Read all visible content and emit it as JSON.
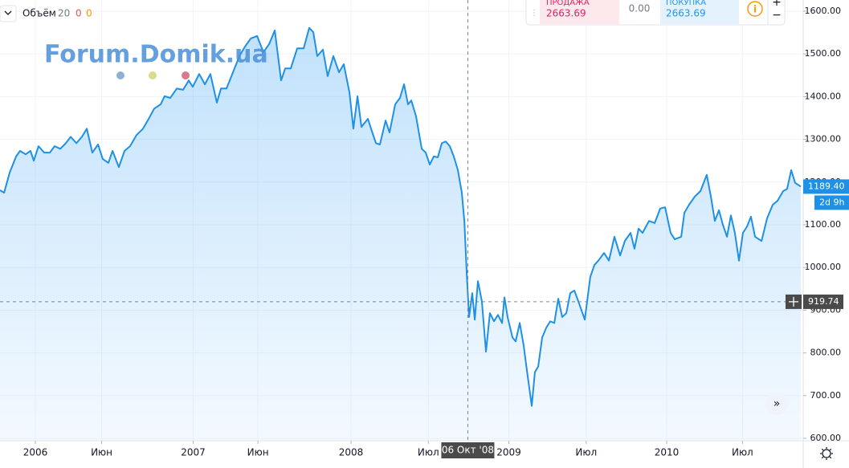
{
  "legend": {
    "name": "Объём",
    "period": "20",
    "volume_values": [
      0,
      0
    ]
  },
  "order_panel": {
    "sell_label": "ПРОДАЖА",
    "sell_price": "2663.69",
    "spread": "0.00",
    "buy_label": "ПОКУПКА",
    "buy_price": "2663.69"
  },
  "watermark": "Forum.Domik.ua",
  "chart_data": {
    "type": "line",
    "color": "#1e90e6",
    "grid": true,
    "x": [
      2005.776,
      2005.802,
      2005.837,
      2005.878,
      2005.903,
      2005.939,
      2005.969,
      2005.99,
      2006.02,
      2006.056,
      2006.092,
      2006.122,
      2006.158,
      2006.193,
      2006.224,
      2006.26,
      2006.295,
      2006.326,
      2006.361,
      2006.397,
      2006.427,
      2006.463,
      2006.489,
      2006.529,
      2006.565,
      2006.6,
      2006.641,
      2006.682,
      2006.718,
      2006.753,
      2006.794,
      2006.819,
      2006.855,
      2006.896,
      2006.936,
      2006.972,
      2006.997,
      2007.038,
      2007.074,
      2007.109,
      2007.15,
      2007.176,
      2007.211,
      2007.252,
      2007.293,
      2007.328,
      2007.364,
      2007.405,
      2007.445,
      2007.481,
      2007.517,
      2007.557,
      2007.583,
      2007.618,
      2007.659,
      2007.7,
      2007.735,
      2007.761,
      2007.786,
      2007.822,
      2007.852,
      2007.888,
      2007.924,
      2007.954,
      2007.99,
      2008.015,
      2008.041,
      2008.066,
      2008.107,
      2008.127,
      2008.158,
      2008.183,
      2008.219,
      2008.244,
      2008.28,
      2008.31,
      2008.336,
      2008.361,
      2008.382,
      2008.412,
      2008.448,
      2008.473,
      2008.499,
      2008.524,
      2008.55,
      2008.575,
      2008.6,
      2008.626,
      2008.651,
      2008.677,
      2008.702,
      2008.718,
      2008.733,
      2008.748,
      2008.768,
      2008.784,
      2008.804,
      2008.829,
      2008.855,
      2008.88,
      2008.906,
      2008.931,
      2008.957,
      2008.972,
      2008.992,
      2009.023,
      2009.043,
      2009.069,
      2009.094,
      2009.114,
      2009.145,
      2009.165,
      2009.186,
      2009.211,
      2009.237,
      2009.262,
      2009.288,
      2009.313,
      2009.338,
      2009.364,
      2009.389,
      2009.415,
      2009.44,
      2009.481,
      2009.516,
      2009.542,
      2009.567,
      2009.603,
      2009.634,
      2009.669,
      2009.705,
      2009.735,
      2009.771,
      2009.796,
      2009.822,
      2009.847,
      2009.888,
      2009.924,
      2009.959,
      2009.99,
      2010.025,
      2010.051,
      2010.092,
      2010.112,
      2010.142,
      2010.178,
      2010.214,
      2010.254,
      2010.28,
      2010.305,
      2010.331,
      2010.356,
      2010.382,
      2010.407,
      2010.432,
      2010.458,
      2010.483,
      2010.509,
      2010.534,
      2010.56,
      2010.601,
      2010.636,
      2010.672,
      2010.702,
      2010.738,
      2010.763,
      2010.789,
      2010.814,
      2010.85
    ],
    "values": [
      1181,
      1175,
      1222,
      1260,
      1273,
      1265,
      1273,
      1250,
      1284,
      1269,
      1269,
      1284,
      1278,
      1291,
      1306,
      1291,
      1306,
      1325,
      1269,
      1288,
      1254,
      1245,
      1273,
      1235,
      1273,
      1284,
      1310,
      1325,
      1348,
      1372,
      1382,
      1401,
      1397,
      1419,
      1416,
      1438,
      1423,
      1453,
      1429,
      1453,
      1386,
      1419,
      1419,
      1457,
      1495,
      1517,
      1536,
      1542,
      1504,
      1523,
      1555,
      1438,
      1466,
      1466,
      1513,
      1513,
      1561,
      1551,
      1495,
      1510,
      1448,
      1495,
      1457,
      1476,
      1410,
      1325,
      1401,
      1329,
      1348,
      1325,
      1291,
      1288,
      1344,
      1316,
      1382,
      1397,
      1429,
      1382,
      1391,
      1354,
      1278,
      1269,
      1241,
      1260,
      1258,
      1291,
      1295,
      1284,
      1260,
      1228,
      1175,
      1109,
      987,
      884,
      940,
      878,
      968,
      921,
      803,
      893,
      874,
      889,
      870,
      930,
      884,
      836,
      827,
      870,
      817,
      760,
      676,
      755,
      768,
      836,
      859,
      874,
      870,
      927,
      884,
      893,
      940,
      946,
      921,
      878,
      978,
      1006,
      1016,
      1034,
      1016,
      1072,
      1028,
      1062,
      1081,
      1044,
      1091,
      1081,
      1109,
      1104,
      1138,
      1141,
      1081,
      1066,
      1072,
      1128,
      1147,
      1166,
      1179,
      1217,
      1166,
      1109,
      1134,
      1100,
      1072,
      1122,
      1081,
      1016,
      1081,
      1096,
      1119,
      1072,
      1062,
      1115,
      1147,
      1156,
      1179,
      1184,
      1228,
      1198,
      1189.4
    ],
    "xlim": [
      2005.776,
      2010.865
    ],
    "xticks": [
      {
        "value": 2006,
        "label": "2006"
      },
      {
        "value": 2006.42,
        "label": "Июн"
      },
      {
        "value": 2007,
        "label": "2007"
      },
      {
        "value": 2007.41,
        "label": "Июн"
      },
      {
        "value": 2008,
        "label": "2008"
      },
      {
        "value": 2008.49,
        "label": "Июл"
      },
      {
        "value": 2009,
        "label": "2009"
      },
      {
        "value": 2009.49,
        "label": "Июл"
      },
      {
        "value": 2010,
        "label": "2010"
      },
      {
        "value": 2010.48,
        "label": "Июл"
      }
    ],
    "ylim": [
      594.4,
      1626.3
    ],
    "yticks": [
      {
        "value": 600,
        "label": "600.00"
      },
      {
        "value": 700,
        "label": "700.00"
      },
      {
        "value": 800,
        "label": "800.00"
      },
      {
        "value": 900,
        "label": "900.00"
      },
      {
        "value": 1000,
        "label": "1000.00"
      },
      {
        "value": 1100,
        "label": "1100.00"
      },
      {
        "value": 1200,
        "label": "1200.00"
      },
      {
        "value": 1300,
        "label": "1300.00"
      },
      {
        "value": 1400,
        "label": "1400.00"
      },
      {
        "value": 1500,
        "label": "1500.00"
      },
      {
        "value": 1600,
        "label": "1600.00"
      }
    ],
    "last_value": {
      "value": 1189.4,
      "label": "1189.40"
    },
    "countdown": "2d 9h",
    "crosshair": {
      "x": 2008.74,
      "x_label": "06 Окт '08",
      "y": 919.74,
      "y_label": "919.74"
    }
  }
}
